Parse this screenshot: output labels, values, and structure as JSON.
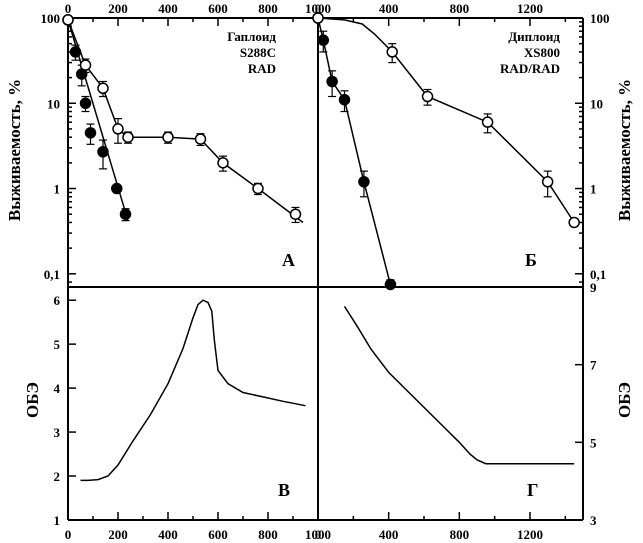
{
  "chart_data": [
    {
      "panel": "A",
      "type": "scatter",
      "annotation": [
        "Гаплоид",
        "S288C",
        "RAD"
      ],
      "ylabel": "Выживаемость, %",
      "yscale": "log",
      "xlim": [
        0,
        1000
      ],
      "ylim": [
        0.07,
        100
      ],
      "xticks": [
        0,
        200,
        400,
        600,
        800,
        1000
      ],
      "yticks": [
        {
          "value": 100,
          "label": "100"
        },
        {
          "value": 10,
          "label": "10"
        },
        {
          "value": 1,
          "label": "1"
        },
        {
          "value": 0.1,
          "label": "0,1"
        }
      ],
      "series": [
        {
          "marker": "filled",
          "x": [
            0,
            30,
            55,
            70,
            90,
            140,
            195,
            230
          ],
          "y": [
            95,
            40,
            22,
            10,
            4.5,
            2.7,
            1.0,
            0.5
          ],
          "err": [
            0,
            8,
            6,
            2,
            1.2,
            1.0,
            0,
            0.08
          ]
        },
        {
          "marker": "open",
          "x": [
            0,
            70,
            140,
            200,
            240,
            400,
            530,
            620,
            760,
            910
          ],
          "y": [
            95,
            28,
            15,
            5.0,
            4.0,
            4.0,
            3.8,
            2.0,
            1.0,
            0.5
          ],
          "err": [
            0,
            5,
            3,
            1.6,
            0.6,
            0.6,
            0.6,
            0.4,
            0.15,
            0.1
          ]
        }
      ],
      "fit": [
        {
          "x": [
            0,
            240
          ],
          "y": [
            95,
            0.42
          ]
        },
        {
          "x": [
            0,
            70,
            140,
            200,
            240,
            400,
            530,
            620,
            760,
            940
          ],
          "y": [
            95,
            28,
            15,
            5.0,
            4.0,
            4.0,
            3.8,
            2.0,
            1.0,
            0.4
          ]
        }
      ]
    },
    {
      "panel": "Б",
      "type": "scatter",
      "annotation": [
        "Диплоид",
        "XS800",
        "RAD/RAD"
      ],
      "ylabel": "Выживаемость, %",
      "yscale": "log",
      "xlim": [
        0,
        1500
      ],
      "ylim": [
        0.07,
        100
      ],
      "xticks": [
        0,
        400,
        800,
        1200
      ],
      "yticks": [
        {
          "value": 100,
          "label": "100"
        },
        {
          "value": 10,
          "label": "10"
        },
        {
          "value": 1,
          "label": "1"
        },
        {
          "value": 0.1,
          "label": "0,1"
        }
      ],
      "series": [
        {
          "marker": "filled",
          "x": [
            0,
            30,
            80,
            150,
            260,
            410
          ],
          "y": [
            100,
            55,
            18,
            11,
            1.2,
            0.075
          ],
          "err": [
            0,
            15,
            6,
            3,
            0.4,
            0.01
          ]
        },
        {
          "marker": "open",
          "x": [
            0,
            420,
            620,
            960,
            1300,
            1450
          ],
          "y": [
            100,
            40,
            12,
            6,
            1.2,
            0.4
          ],
          "err": [
            0,
            10,
            2.5,
            1.5,
            0.4,
            0
          ]
        }
      ],
      "fit": [
        {
          "x": [
            0,
            30,
            80,
            150,
            260,
            410
          ],
          "y": [
            100,
            55,
            18,
            11,
            1.2,
            0.075
          ]
        },
        {
          "x": [
            0,
            150,
            250,
            320,
            420,
            620,
            960,
            1300,
            1450
          ],
          "y": [
            100,
            95,
            85,
            65,
            40,
            12,
            6,
            1.2,
            0.4
          ]
        }
      ]
    },
    {
      "panel": "В",
      "type": "line",
      "ylabel": "ОБЭ",
      "xlim": [
        0,
        1000
      ],
      "ylim": [
        1,
        6.3
      ],
      "xticks": [
        0,
        200,
        400,
        600,
        800,
        1000
      ],
      "yticks": [
        {
          "value": 1,
          "label": "1"
        },
        {
          "value": 2,
          "label": "2"
        },
        {
          "value": 3,
          "label": "3"
        },
        {
          "value": 4,
          "label": "4"
        },
        {
          "value": 5,
          "label": "5"
        },
        {
          "value": 6,
          "label": "6"
        }
      ],
      "series": [
        {
          "x": [
            50,
            80,
            120,
            160,
            200,
            260,
            330,
            400,
            460,
            500,
            520,
            540,
            560,
            575,
            585,
            600,
            640,
            700,
            780,
            860,
            950
          ],
          "y": [
            1.9,
            1.9,
            1.92,
            2.0,
            2.25,
            2.8,
            3.4,
            4.1,
            4.9,
            5.6,
            5.9,
            6.0,
            5.95,
            5.75,
            5.1,
            4.4,
            4.1,
            3.9,
            3.8,
            3.7,
            3.6
          ]
        }
      ]
    },
    {
      "panel": "Г",
      "type": "line",
      "ylabel": "ОБЭ",
      "xlim": [
        0,
        1500
      ],
      "ylim": [
        3,
        9
      ],
      "xticks": [
        0,
        400,
        800,
        1200
      ],
      "yticks": [
        {
          "value": 3,
          "label": "3"
        },
        {
          "value": 5,
          "label": "5"
        },
        {
          "value": 7,
          "label": "7"
        },
        {
          "value": 9,
          "label": "9"
        }
      ],
      "series": [
        {
          "x": [
            150,
            220,
            300,
            400,
            500,
            600,
            700,
            800,
            860,
            900,
            950,
            1000,
            1100,
            1200,
            1300,
            1450
          ],
          "y": [
            8.5,
            8.0,
            7.4,
            6.8,
            6.35,
            5.9,
            5.45,
            5.0,
            4.7,
            4.55,
            4.45,
            4.45,
            4.45,
            4.45,
            4.45,
            4.45
          ]
        }
      ]
    }
  ]
}
